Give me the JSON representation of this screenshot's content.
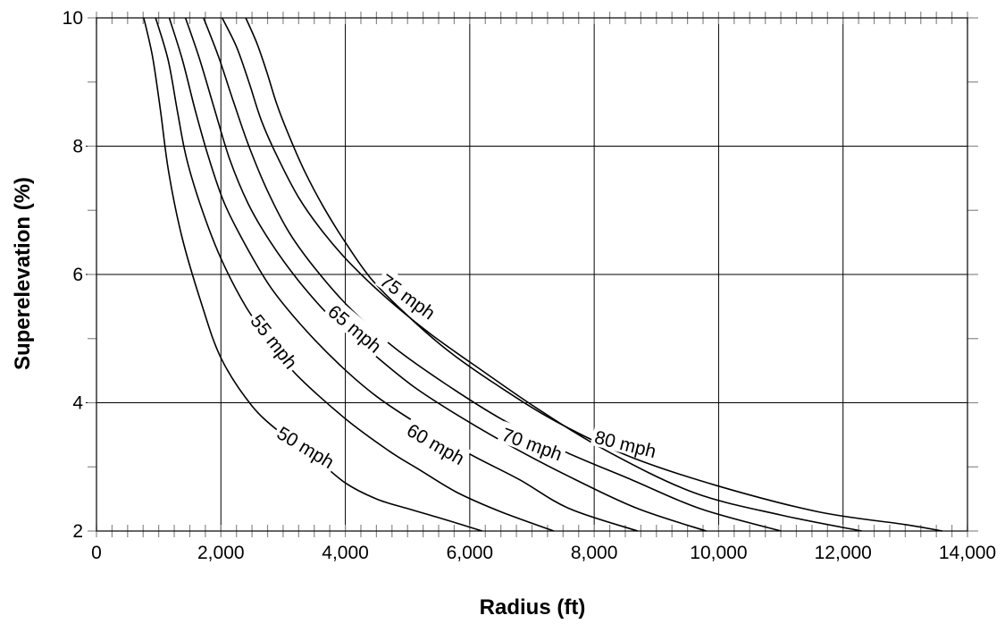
{
  "chart_data": {
    "type": "line",
    "title": "",
    "xlabel": "Radius (ft)",
    "ylabel": "Superelevation (%)",
    "xlim": [
      0,
      14000
    ],
    "ylim": [
      2,
      10
    ],
    "grid": true,
    "legend": "none (series labelled inline on curves)",
    "x_ticks": [
      {
        "value": 0,
        "label": "0"
      },
      {
        "value": 2000,
        "label": "2,000"
      },
      {
        "value": 4000,
        "label": "4,000"
      },
      {
        "value": 6000,
        "label": "6,000"
      },
      {
        "value": 8000,
        "label": "8,000"
      },
      {
        "value": 10000,
        "label": "10,000"
      },
      {
        "value": 12000,
        "label": "12,000"
      },
      {
        "value": 14000,
        "label": "14,000"
      }
    ],
    "y_ticks": [
      {
        "value": 2,
        "label": "2"
      },
      {
        "value": 4,
        "label": "4"
      },
      {
        "value": 6,
        "label": "6"
      },
      {
        "value": 8,
        "label": "8"
      },
      {
        "value": 10,
        "label": "10"
      }
    ],
    "series": [
      {
        "name": "50 mph",
        "points": [
          [
            760,
            10
          ],
          [
            900,
            9.4
          ],
          [
            1030,
            8.55
          ],
          [
            1160,
            7.6
          ],
          [
            1370,
            6.6
          ],
          [
            1670,
            5.6
          ],
          [
            2000,
            4.7
          ],
          [
            2500,
            3.95
          ],
          [
            3000,
            3.5
          ],
          [
            3500,
            3.15
          ],
          [
            4000,
            2.75
          ],
          [
            4500,
            2.5
          ],
          [
            5000,
            2.35
          ],
          [
            5600,
            2.18
          ],
          [
            6200,
            2.0
          ]
        ]
      },
      {
        "name": "55 mph",
        "points": [
          [
            950,
            10
          ],
          [
            1150,
            9.35
          ],
          [
            1300,
            8.55
          ],
          [
            1450,
            7.8
          ],
          [
            1700,
            7.0
          ],
          [
            2000,
            6.25
          ],
          [
            2400,
            5.5
          ],
          [
            2800,
            4.95
          ],
          [
            3200,
            4.45
          ],
          [
            4000,
            3.75
          ],
          [
            4700,
            3.25
          ],
          [
            5200,
            2.95
          ],
          [
            5800,
            2.6
          ],
          [
            6500,
            2.3
          ],
          [
            7350,
            2.0
          ]
        ]
      },
      {
        "name": "60 mph",
        "points": [
          [
            1170,
            10
          ],
          [
            1380,
            9.35
          ],
          [
            1590,
            8.55
          ],
          [
            1810,
            7.8
          ],
          [
            2060,
            7.1
          ],
          [
            2400,
            6.45
          ],
          [
            2800,
            5.8
          ],
          [
            3300,
            5.2
          ],
          [
            3900,
            4.6
          ],
          [
            4500,
            4.1
          ],
          [
            5200,
            3.65
          ],
          [
            6000,
            3.2
          ],
          [
            6800,
            2.8
          ],
          [
            7600,
            2.35
          ],
          [
            8700,
            2.0
          ]
        ]
      },
      {
        "name": "65 mph",
        "points": [
          [
            1430,
            10
          ],
          [
            1660,
            9.35
          ],
          [
            1890,
            8.6
          ],
          [
            2140,
            7.8
          ],
          [
            2440,
            7.1
          ],
          [
            2800,
            6.5
          ],
          [
            3250,
            5.9
          ],
          [
            3800,
            5.3
          ],
          [
            4400,
            4.8
          ],
          [
            5100,
            4.25
          ],
          [
            5900,
            3.75
          ],
          [
            6800,
            3.25
          ],
          [
            7700,
            2.8
          ],
          [
            8700,
            2.35
          ],
          [
            9800,
            2.0
          ]
        ]
      },
      {
        "name": "70 mph",
        "points": [
          [
            1720,
            10
          ],
          [
            1960,
            9.4
          ],
          [
            2200,
            8.7
          ],
          [
            2450,
            8.0
          ],
          [
            2750,
            7.3
          ],
          [
            3100,
            6.65
          ],
          [
            3550,
            6.05
          ],
          [
            4100,
            5.45
          ],
          [
            4800,
            4.85
          ],
          [
            5600,
            4.3
          ],
          [
            6500,
            3.75
          ],
          [
            7500,
            3.25
          ],
          [
            8600,
            2.8
          ],
          [
            9700,
            2.35
          ],
          [
            11000,
            2.0
          ]
        ]
      },
      {
        "name": "75 mph",
        "points": [
          [
            2020,
            10
          ],
          [
            2250,
            9.55
          ],
          [
            2450,
            9.0
          ],
          [
            2650,
            8.4
          ],
          [
            2900,
            7.85
          ],
          [
            3250,
            7.2
          ],
          [
            3650,
            6.65
          ],
          [
            4100,
            6.15
          ],
          [
            4700,
            5.6
          ],
          [
            5400,
            5.05
          ],
          [
            6200,
            4.5
          ],
          [
            7100,
            3.9
          ],
          [
            8200,
            3.25
          ],
          [
            9600,
            2.6
          ],
          [
            11000,
            2.25
          ],
          [
            12300,
            2.0
          ]
        ]
      },
      {
        "name": "80 mph",
        "points": [
          [
            2400,
            10
          ],
          [
            2580,
            9.6
          ],
          [
            2740,
            9.15
          ],
          [
            2900,
            8.65
          ],
          [
            3100,
            8.15
          ],
          [
            3350,
            7.6
          ],
          [
            3650,
            7.05
          ],
          [
            4000,
            6.5
          ],
          [
            4400,
            5.95
          ],
          [
            4900,
            5.45
          ],
          [
            5600,
            4.85
          ],
          [
            6400,
            4.3
          ],
          [
            7400,
            3.7
          ],
          [
            8600,
            3.15
          ],
          [
            10000,
            2.7
          ],
          [
            11600,
            2.3
          ],
          [
            13000,
            2.1
          ],
          [
            13600,
            2.0
          ]
        ]
      }
    ],
    "series_labels": [
      {
        "series": "50 mph",
        "text": "50 mph"
      },
      {
        "series": "55 mph",
        "text": "55 mph"
      },
      {
        "series": "60 mph",
        "text": "60 mph"
      },
      {
        "series": "65 mph",
        "text": "65 mph"
      },
      {
        "series": "70 mph",
        "text": "70 mph"
      },
      {
        "series": "75 mph",
        "text": "75 mph"
      },
      {
        "series": "80 mph",
        "text": "80 mph"
      }
    ]
  }
}
